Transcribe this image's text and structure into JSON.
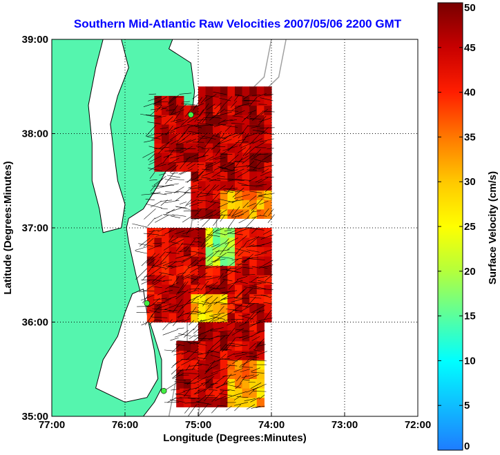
{
  "chart_data": {
    "type": "heatmap",
    "title": "Southern Mid-Atlantic Raw Velocities 2007/05/06 2200 GMT",
    "xlabel": "Longitude (Degrees:Minutes)",
    "ylabel": "Latitude (Degrees:Minutes)",
    "x_ticks": [
      "77:00",
      "76:00",
      "75:00",
      "74:00",
      "73:00",
      "72:00"
    ],
    "y_ticks": [
      "39:00",
      "38:00",
      "37:00",
      "36:00",
      "35:00"
    ],
    "x_range": [
      -77,
      -72
    ],
    "y_range": [
      35,
      39
    ],
    "grid": true,
    "colorbar": {
      "label": "Surface Velocity (cm/s)",
      "range": [
        0,
        50
      ],
      "ticks": [
        "50",
        "45",
        "40",
        "35",
        "30",
        "25",
        "20",
        "15",
        "10",
        "5",
        "0"
      ]
    },
    "colors": {
      "land": "#55f5ae",
      "coast": "#000000",
      "bathymetry": "#a0a0a0",
      "station": "#44ee44",
      "title": "#0000ff"
    },
    "stations": [
      {
        "lon": -75.1,
        "lat": 38.2
      },
      {
        "lon": -75.7,
        "lat": 36.2
      },
      {
        "lon": -75.47,
        "lat": 35.27
      }
    ],
    "regions": [
      {
        "name": "north",
        "lon": [
          -75.6,
          -74.0
        ],
        "lat": [
          37.1,
          38.45
        ],
        "speed": 46
      },
      {
        "name": "middle",
        "lon": [
          -75.7,
          -74.0
        ],
        "lat": [
          36.0,
          37.0
        ],
        "speed": 44
      },
      {
        "name": "south",
        "lon": [
          -75.3,
          -74.1
        ],
        "lat": [
          35.1,
          35.95
        ],
        "speed": 45
      }
    ]
  }
}
